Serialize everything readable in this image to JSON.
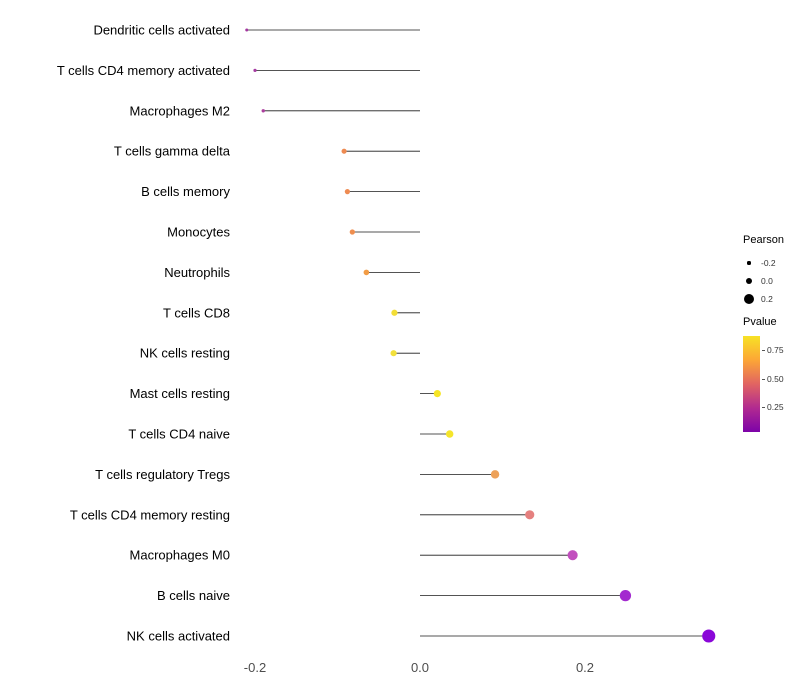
{
  "chart_data": {
    "type": "scatter",
    "variant": "lollipop",
    "title": "",
    "xlabel": "",
    "ylabel": "",
    "xlim": [
      -0.28,
      0.42
    ],
    "grid": false,
    "x_ticks": [
      {
        "label": "-0.2",
        "value": -0.2
      },
      {
        "label": "0.0",
        "value": 0.0
      },
      {
        "label": "0.2",
        "value": 0.2
      }
    ],
    "points": [
      {
        "label": "Dendritic cells activated",
        "pearson": -0.21,
        "color": "#A437A0"
      },
      {
        "label": "T cells CD4 memory activated",
        "pearson": -0.2,
        "color": "#A63BA2"
      },
      {
        "label": "Macrophages M2",
        "pearson": -0.19,
        "color": "#AC3F9E"
      },
      {
        "label": "T cells gamma delta",
        "pearson": -0.092,
        "color": "#EE8A51"
      },
      {
        "label": "B cells memory",
        "pearson": -0.088,
        "color": "#EE8B52"
      },
      {
        "label": "Monocytes",
        "pearson": -0.082,
        "color": "#EF8E4F"
      },
      {
        "label": "Neutrophils",
        "pearson": -0.065,
        "color": "#F29C45"
      },
      {
        "label": "T cells CD8",
        "pearson": -0.031,
        "color": "#F3DE37"
      },
      {
        "label": "NK cells resting",
        "pearson": -0.032,
        "color": "#F2E03A"
      },
      {
        "label": "Mast cells resting",
        "pearson": 0.021,
        "color": "#F6E525"
      },
      {
        "label": "T cells CD4 naive",
        "pearson": 0.036,
        "color": "#F5E52B"
      },
      {
        "label": "T cells regulatory  Tregs",
        "pearson": 0.091,
        "color": "#EDA159"
      },
      {
        "label": "T cells CD4 memory resting",
        "pearson": 0.133,
        "color": "#E5807F"
      },
      {
        "label": "Macrophages M0",
        "pearson": 0.185,
        "color": "#C24FBE"
      },
      {
        "label": "B cells naive",
        "pearson": 0.249,
        "color": "#A32ACF"
      },
      {
        "label": "NK cells activated",
        "pearson": 0.35,
        "color": "#8A07D8"
      }
    ],
    "legend_size": {
      "title": "Pearson",
      "entries": [
        {
          "label": "-0.2",
          "value": -0.2
        },
        {
          "label": "0.0",
          "value": 0.0
        },
        {
          "label": "0.2",
          "value": 0.2
        }
      ]
    },
    "legend_color": {
      "title": "Pvalue",
      "gradient_top_to_bottom": [
        "#F7E225",
        "#FCA636",
        "#E16462",
        "#B12A90",
        "#7D03A8"
      ],
      "ticks": [
        {
          "label": "0.75",
          "pos": 0.15
        },
        {
          "label": "0.50",
          "pos": 0.45
        },
        {
          "label": "0.25",
          "pos": 0.74
        }
      ]
    }
  }
}
